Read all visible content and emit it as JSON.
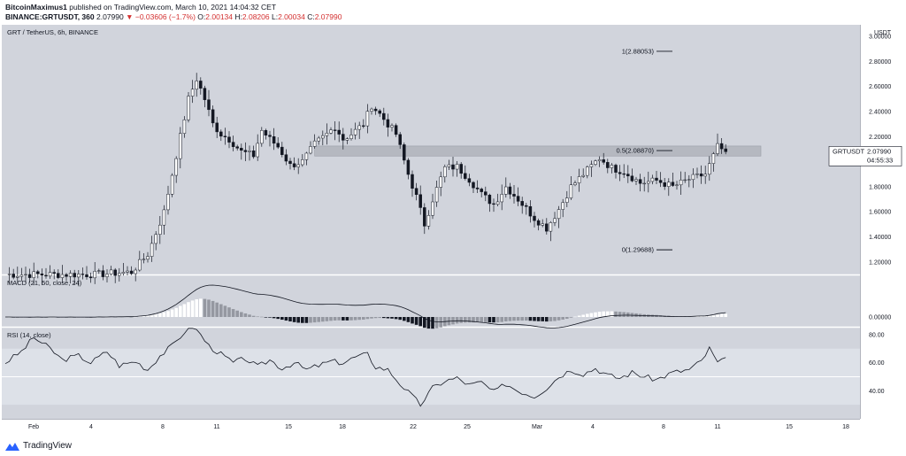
{
  "header": {
    "author": "BitcoinMaximus1",
    "published_text": "published on TradingView.com, March 10, 2021 14:04:32 CET",
    "symbol": "BINANCE:GRTUSDT, 360",
    "price": "2.07990",
    "change": "▼ −0.03606 (−1.7%)",
    "o_label": "O:",
    "o_value": "2.00134",
    "h_label": "H:",
    "h_value": "2.08206",
    "l_label": "L:",
    "l_value": "2.00034",
    "c_label": "C:",
    "c_value": "2.07990"
  },
  "footer": {
    "brand": "TradingView"
  },
  "colors": {
    "pane_bg": "#d1d4dc",
    "candle": "#131722",
    "zone": "#b2b5be",
    "macd_dark": "#131722",
    "macd_light": "#ffffff",
    "macd_grey": "#9598a1"
  },
  "chart_data": [
    {
      "type": "candlestick",
      "title": "GRT / TetherUS, 6h, BINANCE",
      "currency_label": "USDT",
      "ylim": [
        1.1,
        3.05
      ],
      "y_ticks": [
        "1.20000",
        "1.40000",
        "1.60000",
        "1.80000",
        "2.00000",
        "2.20000",
        "2.40000",
        "2.60000",
        "2.80000",
        "3.00000"
      ],
      "x_ticks": [
        "Feb",
        "4",
        "8",
        "11",
        "15",
        "18",
        "22",
        "25",
        "Mar",
        "4",
        "8",
        "11",
        "15",
        "18"
      ],
      "price_label": {
        "symbol": "GRTUSDT",
        "value": "2.07990",
        "countdown": "04:55:33"
      },
      "fib_levels": [
        {
          "label": "1(2.88053)",
          "value": 2.88053
        },
        {
          "label": "0.5(2.08870)",
          "value": 2.0887
        },
        {
          "label": "0(1.29688)",
          "value": 1.29688
        }
      ],
      "zone": [
        2.045,
        2.125
      ],
      "anchors": [
        [
          0,
          1.1
        ],
        [
          22,
          1.1
        ],
        [
          31,
          1.12
        ],
        [
          35,
          1.26
        ],
        [
          39,
          1.6
        ],
        [
          42,
          2.05
        ],
        [
          45,
          2.5
        ],
        [
          47,
          2.66
        ],
        [
          49,
          2.5
        ],
        [
          51,
          2.3
        ],
        [
          53,
          2.22
        ],
        [
          55,
          2.18
        ],
        [
          58,
          2.08
        ],
        [
          61,
          2.05
        ],
        [
          63,
          2.25
        ],
        [
          65,
          2.18
        ],
        [
          67,
          2.12
        ],
        [
          70,
          1.97
        ],
        [
          73,
          2.0
        ],
        [
          76,
          2.14
        ],
        [
          79,
          2.22
        ],
        [
          81,
          2.28
        ],
        [
          83,
          2.18
        ],
        [
          85,
          2.22
        ],
        [
          88,
          2.3
        ],
        [
          90,
          2.45
        ],
        [
          92,
          2.38
        ],
        [
          94,
          2.3
        ],
        [
          96,
          2.22
        ],
        [
          99,
          1.9
        ],
        [
          101,
          1.72
        ],
        [
          103,
          1.5
        ],
        [
          105,
          1.7
        ],
        [
          108,
          1.95
        ],
        [
          111,
          1.96
        ],
        [
          114,
          1.86
        ],
        [
          117,
          1.74
        ],
        [
          120,
          1.66
        ],
        [
          123,
          1.8
        ],
        [
          126,
          1.7
        ],
        [
          130,
          1.55
        ],
        [
          133,
          1.47
        ],
        [
          136,
          1.62
        ],
        [
          139,
          1.8
        ],
        [
          142,
          1.9
        ],
        [
          146,
          2.03
        ],
        [
          149,
          1.95
        ],
        [
          152,
          1.92
        ],
        [
          156,
          1.83
        ],
        [
          160,
          1.85
        ],
        [
          164,
          1.8
        ],
        [
          168,
          1.86
        ],
        [
          172,
          1.9
        ],
        [
          175,
          2.12
        ],
        [
          177,
          2.08
        ]
      ]
    },
    {
      "type": "histogram",
      "title": "MACD (21, 50, close, 24)",
      "y_ticks": [
        "0.00000"
      ]
    },
    {
      "type": "line",
      "title": "RSI (14, close)",
      "ylim": [
        20,
        85
      ],
      "y_ticks": [
        "80.00",
        "60.00",
        "40.00"
      ],
      "anchors": [
        [
          0,
          60
        ],
        [
          4,
          68
        ],
        [
          7,
          78
        ],
        [
          11,
          70
        ],
        [
          14,
          62
        ],
        [
          18,
          65
        ],
        [
          21,
          60
        ],
        [
          25,
          68
        ],
        [
          28,
          58
        ],
        [
          32,
          61
        ],
        [
          35,
          55
        ],
        [
          38,
          65
        ],
        [
          41,
          72
        ],
        [
          44,
          82
        ],
        [
          46,
          86
        ],
        [
          48,
          80
        ],
        [
          50,
          72
        ],
        [
          53,
          66
        ],
        [
          56,
          60
        ],
        [
          59,
          63
        ],
        [
          62,
          57
        ],
        [
          65,
          62
        ],
        [
          68,
          56
        ],
        [
          71,
          60
        ],
        [
          74,
          55
        ],
        [
          77,
          58
        ],
        [
          80,
          61
        ],
        [
          83,
          60
        ],
        [
          86,
          64
        ],
        [
          89,
          66
        ],
        [
          91,
          57
        ],
        [
          94,
          55
        ],
        [
          97,
          45
        ],
        [
          100,
          36
        ],
        [
          102,
          30
        ],
        [
          105,
          42
        ],
        [
          108,
          47
        ],
        [
          111,
          49
        ],
        [
          114,
          44
        ],
        [
          117,
          46
        ],
        [
          120,
          39
        ],
        [
          123,
          45
        ],
        [
          126,
          40
        ],
        [
          130,
          36
        ],
        [
          133,
          42
        ],
        [
          136,
          50
        ],
        [
          139,
          55
        ],
        [
          142,
          52
        ],
        [
          145,
          56
        ],
        [
          148,
          51
        ],
        [
          151,
          49
        ],
        [
          154,
          53
        ],
        [
          157,
          50
        ],
        [
          160,
          48
        ],
        [
          164,
          53
        ],
        [
          168,
          55
        ],
        [
          171,
          61
        ],
        [
          173,
          70
        ],
        [
          175,
          60
        ],
        [
          177,
          62
        ]
      ]
    }
  ]
}
